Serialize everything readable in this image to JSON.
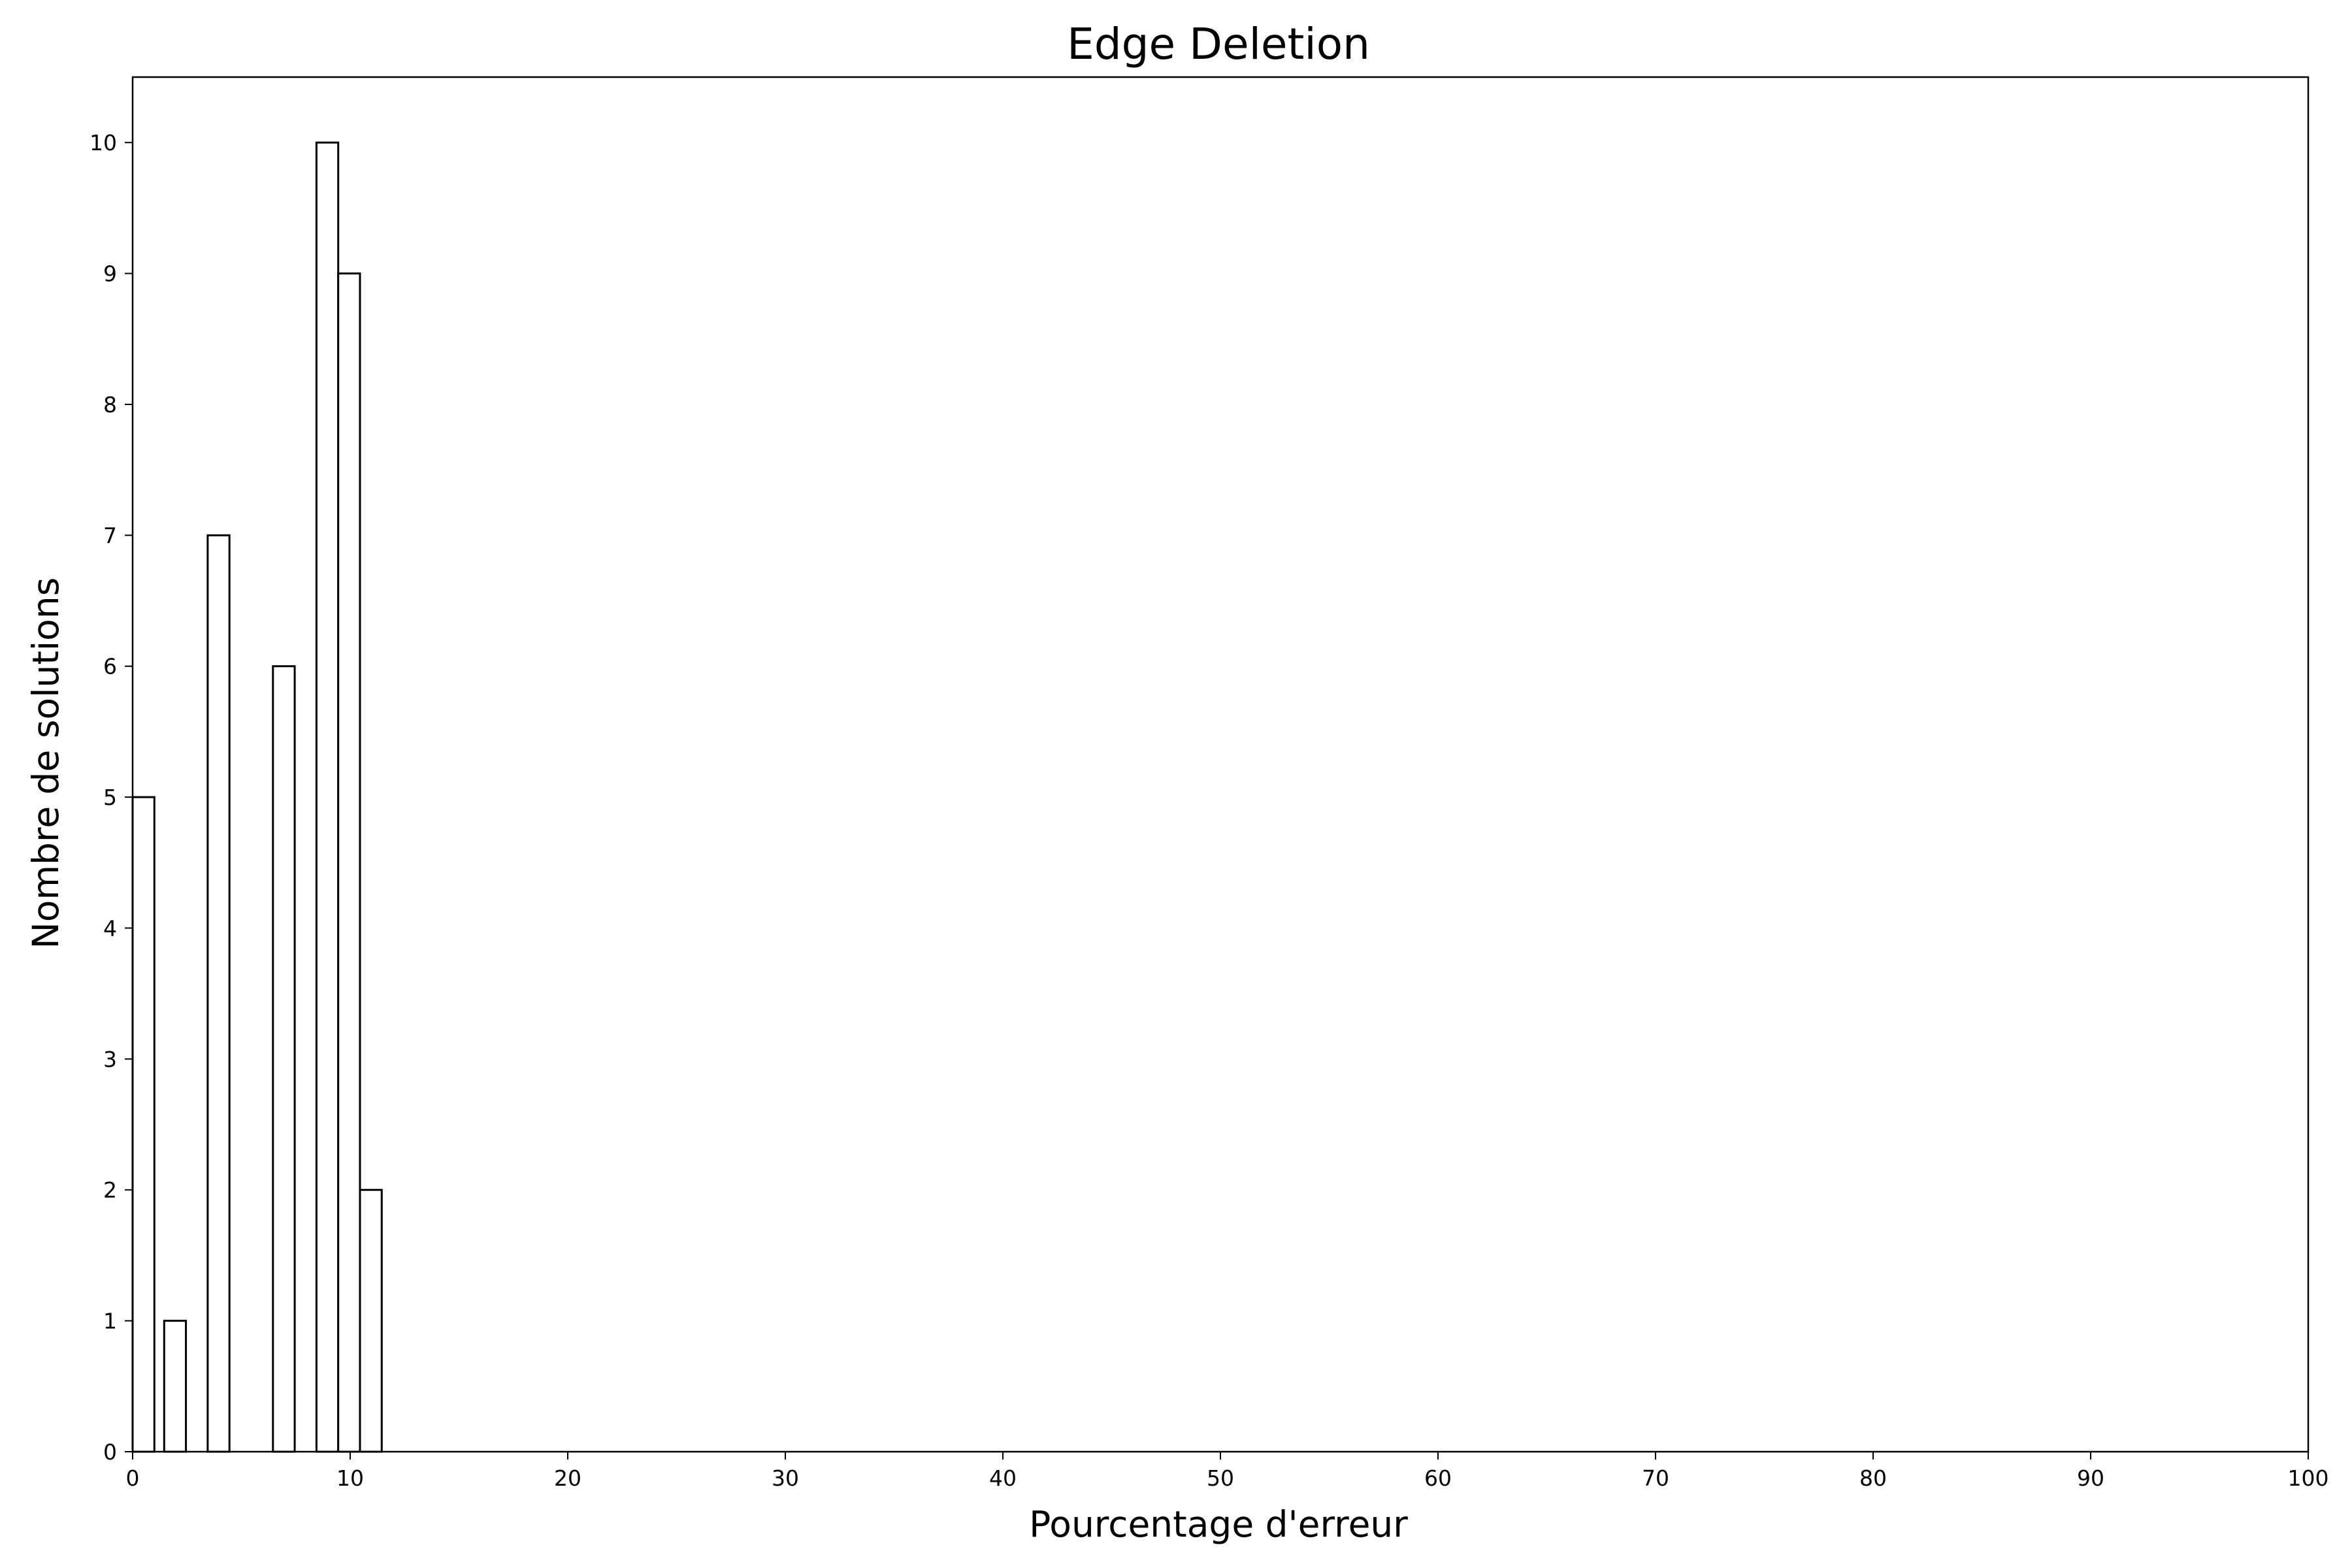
{
  "chart_data": {
    "type": "bar",
    "title": "Edge Deletion",
    "xlabel": "Pourcentage d'erreur",
    "ylabel": "Nombre de solutions",
    "xlim": [
      0,
      100
    ],
    "ylim": [
      0,
      10.5
    ],
    "xticks": [
      0,
      10,
      20,
      30,
      40,
      50,
      60,
      70,
      80,
      90,
      100
    ],
    "yticks": [
      0,
      1,
      2,
      3,
      4,
      5,
      6,
      7,
      8,
      9,
      10
    ],
    "bin_width": 1.0,
    "bars": [
      {
        "x_start": 0.0,
        "value": 5
      },
      {
        "x_start": 1.45,
        "value": 1
      },
      {
        "x_start": 3.45,
        "value": 7
      },
      {
        "x_start": 6.45,
        "value": 6
      },
      {
        "x_start": 8.45,
        "value": 10
      },
      {
        "x_start": 9.45,
        "value": 9
      },
      {
        "x_start": 10.45,
        "value": 2
      }
    ],
    "bar_fill": "#ffffff",
    "bar_edge": "#000000",
    "grid": false,
    "legend": "none"
  }
}
